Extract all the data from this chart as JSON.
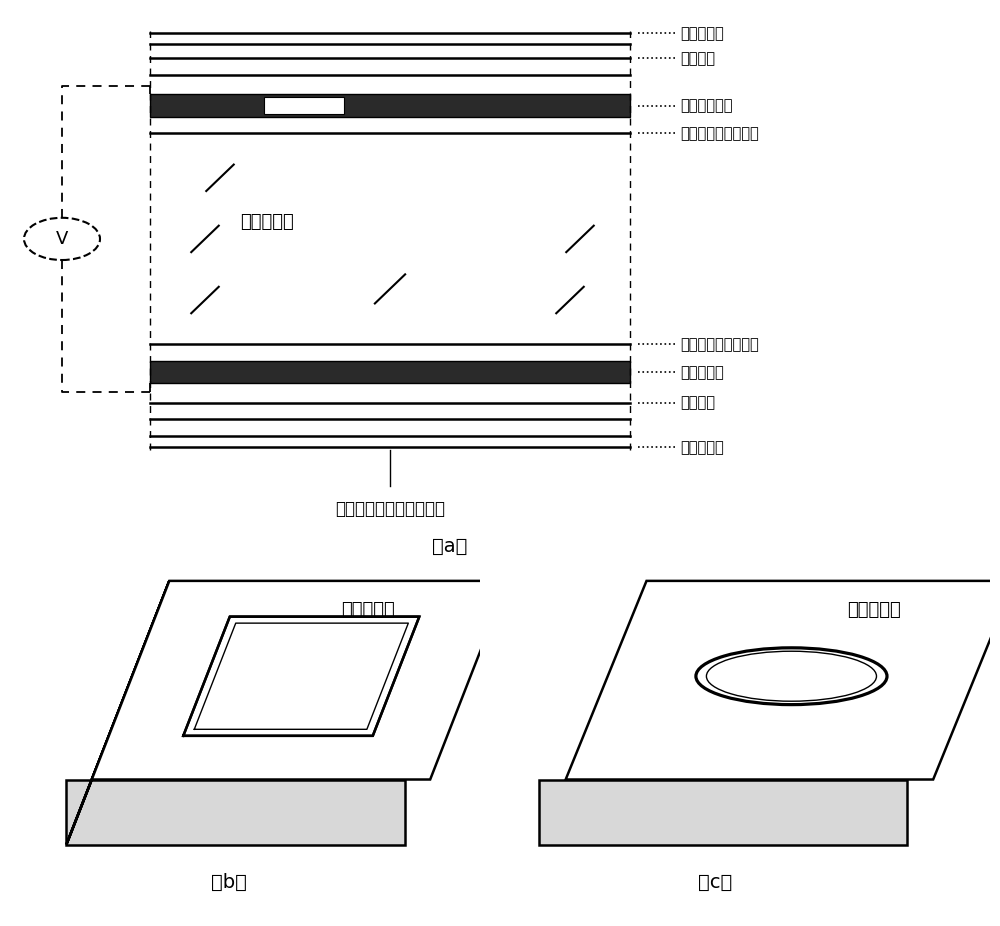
{
  "bg_color": "#ffffff",
  "title_a": "（a）",
  "title_b": "（b）",
  "title_c": "（c）",
  "label_caption": "单元电控液晶汇聚微透镜",
  "lc_label": "液晶材料层",
  "label_b": "微方孔电极",
  "label_c": "微圆孔电极",
  "voltage_label": "V",
  "layer_labels": [
    "第一增透膜",
    "第一基片",
    "图形化电极层",
    "第一液晶初始取向层",
    "第二液晶初始取向层",
    "公共电极层",
    "第二基片",
    "第二增透膜"
  ]
}
